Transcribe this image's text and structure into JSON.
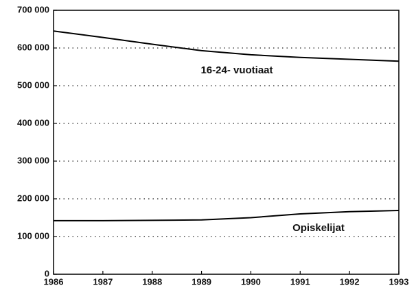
{
  "chart_data": {
    "type": "line",
    "x": [
      1986,
      1987,
      1988,
      1989,
      1990,
      1991,
      1992,
      1993
    ],
    "series": [
      {
        "name": "16-24- vuotiaat",
        "color": "#000000",
        "values": [
          645000,
          628000,
          610000,
          593000,
          582000,
          575000,
          570000,
          565000
        ]
      },
      {
        "name": "Opiskelijat",
        "color": "#000000",
        "values": [
          142000,
          142000,
          143000,
          144000,
          150000,
          160000,
          166000,
          169000
        ]
      }
    ],
    "xlim": [
      1986,
      1993
    ],
    "xticks": [
      1986,
      1987,
      1988,
      1989,
      1990,
      1991,
      1992,
      1993
    ],
    "ylim": [
      0,
      700000
    ],
    "yticks": [
      0,
      {
        "value": 100000,
        "label": "100 000"
      },
      {
        "value": 200000,
        "label": "200 000"
      },
      {
        "value": 300000,
        "label": "300 000"
      },
      {
        "value": 400000,
        "label": "400 000"
      },
      {
        "value": 500000,
        "label": "500 000"
      },
      {
        "value": 600000,
        "label": "600 000"
      },
      {
        "value": 700000,
        "label": "700 000"
      }
    ],
    "grid": true
  }
}
